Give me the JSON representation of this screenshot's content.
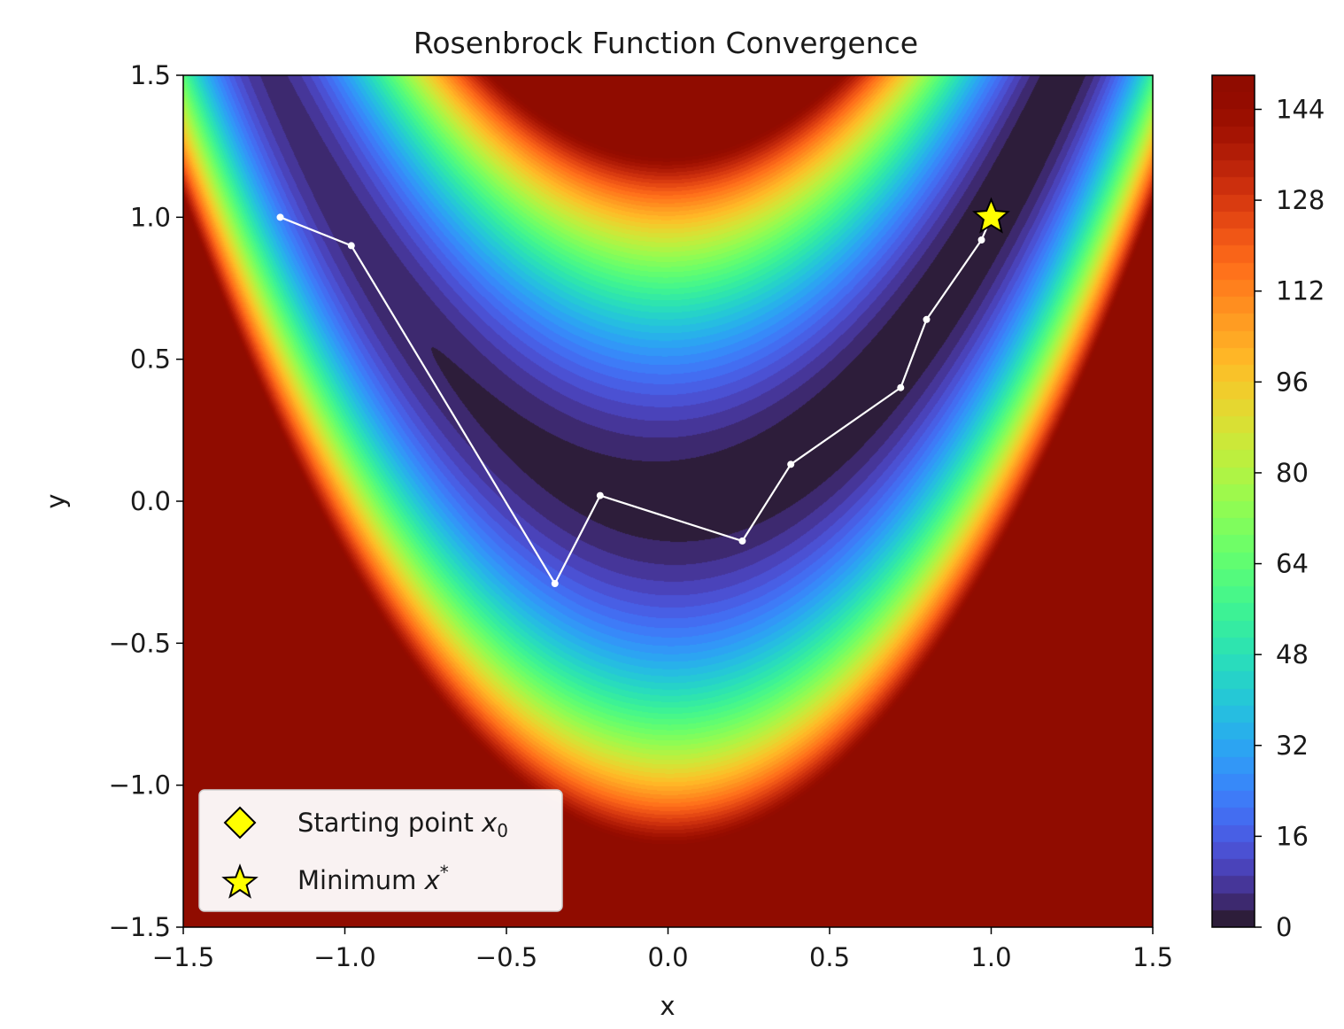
{
  "chart_data": {
    "type": "contour",
    "title": "Rosenbrock Function Convergence",
    "xlabel": "x",
    "ylabel": "y",
    "xlim": [
      -1.5,
      1.5
    ],
    "ylim": [
      -1.5,
      1.5
    ],
    "x_ticks": [
      "−1.5",
      "−1.0",
      "−0.5",
      "0.0",
      "0.5",
      "1.0",
      "1.5"
    ],
    "x_tick_values": [
      -1.5,
      -1.0,
      -0.5,
      0.0,
      0.5,
      1.0,
      1.5
    ],
    "y_ticks": [
      "1.5",
      "1.0",
      "0.5",
      "0.0",
      "−0.5",
      "−1.0",
      "−1.5"
    ],
    "y_tick_values": [
      1.5,
      1.0,
      0.5,
      0.0,
      -0.5,
      -1.0,
      -1.5
    ],
    "colorbar": {
      "min": 0,
      "max": 150,
      "ticks": [
        "0",
        "16",
        "32",
        "48",
        "64",
        "80",
        "96",
        "112",
        "128",
        "144"
      ],
      "tick_values": [
        0,
        16,
        32,
        48,
        64,
        80,
        96,
        112,
        128,
        144
      ],
      "colormap": "turbo"
    },
    "path": {
      "color": "#ffffff",
      "points": [
        {
          "x": -1.2,
          "y": 1.0
        },
        {
          "x": -0.98,
          "y": 0.9
        },
        {
          "x": -0.35,
          "y": -0.29
        },
        {
          "x": -0.21,
          "y": 0.02
        },
        {
          "x": 0.23,
          "y": -0.14
        },
        {
          "x": 0.38,
          "y": 0.13
        },
        {
          "x": 0.72,
          "y": 0.4
        },
        {
          "x": 0.8,
          "y": 0.64
        },
        {
          "x": 0.97,
          "y": 0.92
        },
        {
          "x": 1.0,
          "y": 1.0
        }
      ]
    },
    "markers": {
      "start": {
        "x": -1.2,
        "y": 1.0,
        "shape": "diamond",
        "color": "#ffff00"
      },
      "minimum": {
        "x": 1.0,
        "y": 1.0,
        "shape": "star",
        "color": "#ffff00"
      }
    },
    "legend": {
      "placement": "lower-left",
      "entries": [
        {
          "label": "Starting point ",
          "math": "x",
          "sub": "0",
          "sup": "",
          "icon": "diamond-icon"
        },
        {
          "label": "Minimum ",
          "math": "x",
          "sub": "",
          "sup": "*",
          "icon": "star-icon"
        }
      ]
    }
  }
}
